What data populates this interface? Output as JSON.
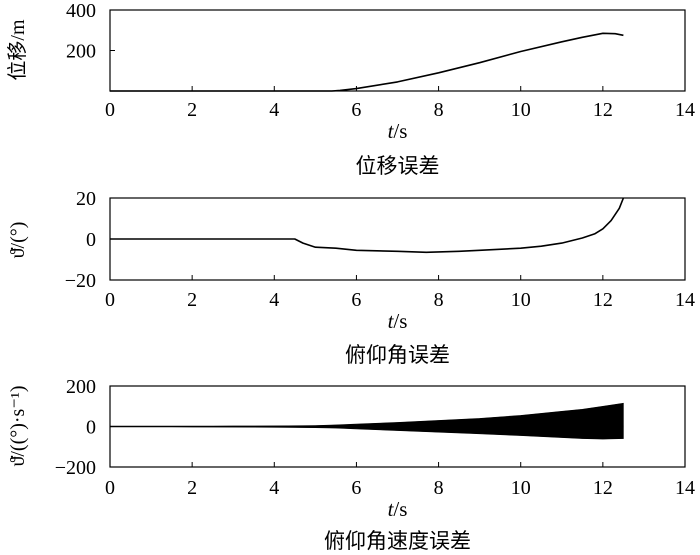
{
  "chart_data": [
    {
      "type": "line",
      "caption": "位移误差",
      "xlabel_var": "t",
      "xlabel_unit": "/s",
      "ylabel": "位移/m",
      "xlim": [
        0,
        14
      ],
      "ylim": [
        0,
        400
      ],
      "xticks": [
        "0",
        "2",
        "4",
        "6",
        "8",
        "10",
        "12",
        "14"
      ],
      "yticks": [
        "200",
        "400"
      ],
      "grid": false,
      "series": [
        {
          "x": [
            0,
            5.4,
            5.6,
            6,
            7,
            8,
            9,
            10,
            11,
            11.5,
            12,
            12.3,
            12.5
          ],
          "y": [
            0,
            0,
            3,
            12,
            45,
            90,
            140,
            195,
            243,
            265,
            285,
            283,
            275
          ]
        }
      ]
    },
    {
      "type": "line",
      "caption": "俯仰角误差",
      "xlabel_var": "t",
      "xlabel_unit": "/s",
      "ylabel": "ϑ̇/(°)",
      "xlim": [
        0,
        14
      ],
      "ylim": [
        -20,
        20
      ],
      "xticks": [
        "0",
        "2",
        "4",
        "6",
        "8",
        "10",
        "12",
        "14"
      ],
      "yticks": [
        "20",
        "0",
        "−20"
      ],
      "grid": false,
      "series": [
        {
          "x": [
            0,
            4.5,
            4.7,
            5.0,
            5.5,
            6.0,
            7.0,
            7.7,
            8.5,
            9.0,
            10.0,
            10.5,
            11.0,
            11.5,
            11.8,
            12.0,
            12.2,
            12.4,
            12.5
          ],
          "y": [
            0,
            0,
            -2,
            -4,
            -4.5,
            -5.5,
            -6,
            -6.5,
            -6,
            -5.5,
            -4.5,
            -3.5,
            -2,
            0.5,
            2.5,
            5,
            9,
            15,
            20
          ]
        }
      ]
    },
    {
      "type": "area",
      "caption": "俯仰角速度误差",
      "xlabel_var": "t",
      "xlabel_unit": "/s",
      "ylabel": "ϑ̇/((°)·s⁻¹)",
      "xlim": [
        0,
        14
      ],
      "ylim": [
        -200,
        200
      ],
      "xticks": [
        "0",
        "2",
        "4",
        "6",
        "8",
        "10",
        "12",
        "14"
      ],
      "yticks": [
        "200",
        "0",
        "−200"
      ],
      "grid": false,
      "series": [
        {
          "x": [
            0,
            1,
            2,
            3,
            4,
            5,
            5.5,
            6,
            7,
            8,
            9,
            10,
            11,
            11.5,
            12,
            12.5
          ],
          "upper": [
            0,
            0,
            0,
            2,
            3,
            5,
            8,
            12,
            20,
            30,
            40,
            55,
            75,
            85,
            100,
            115
          ],
          "lower": [
            0,
            0,
            -2,
            -3,
            -4,
            -6,
            -8,
            -12,
            -20,
            -28,
            -36,
            -45,
            -55,
            -60,
            -62,
            -60
          ]
        }
      ]
    }
  ]
}
